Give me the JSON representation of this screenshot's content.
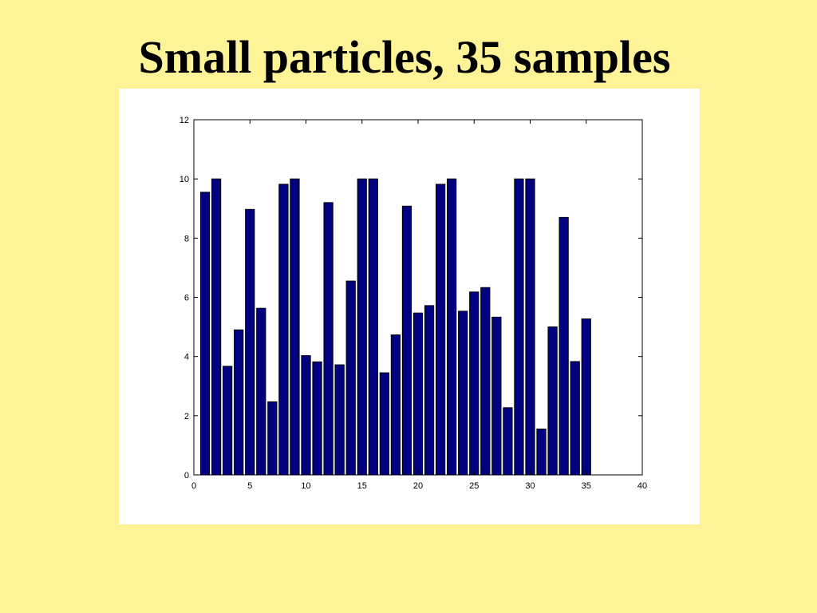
{
  "slide": {
    "title": "Small particles, 35 samples",
    "background_color": "#FFF397"
  },
  "chart_data": {
    "type": "bar",
    "title": "",
    "xlabel": "",
    "ylabel": "",
    "x": [
      1,
      2,
      3,
      4,
      5,
      6,
      7,
      8,
      9,
      10,
      11,
      12,
      13,
      14,
      15,
      16,
      17,
      18,
      19,
      20,
      21,
      22,
      23,
      24,
      25,
      26,
      27,
      28,
      29,
      30,
      31,
      32,
      33,
      34,
      35
    ],
    "values": [
      9.55,
      10,
      3.67,
      4.9,
      8.97,
      5.63,
      2.47,
      9.82,
      10,
      4.03,
      3.82,
      9.2,
      3.72,
      6.55,
      10,
      10,
      3.45,
      4.73,
      9.08,
      5.47,
      5.72,
      9.82,
      10,
      5.53,
      6.18,
      6.33,
      5.33,
      2.27,
      10,
      10,
      1.55,
      5.0,
      8.7,
      3.83,
      5.27
    ],
    "xlim": [
      0,
      40
    ],
    "ylim": [
      0,
      12
    ],
    "xticks": [
      "0",
      "5",
      "10",
      "15",
      "20",
      "25",
      "30",
      "35",
      "40"
    ],
    "yticks": [
      "0",
      "2",
      "4",
      "6",
      "8",
      "10",
      "12"
    ],
    "bar_color": "#000080",
    "bar_edge_color": "#000000",
    "grid": false,
    "legend": "none"
  }
}
